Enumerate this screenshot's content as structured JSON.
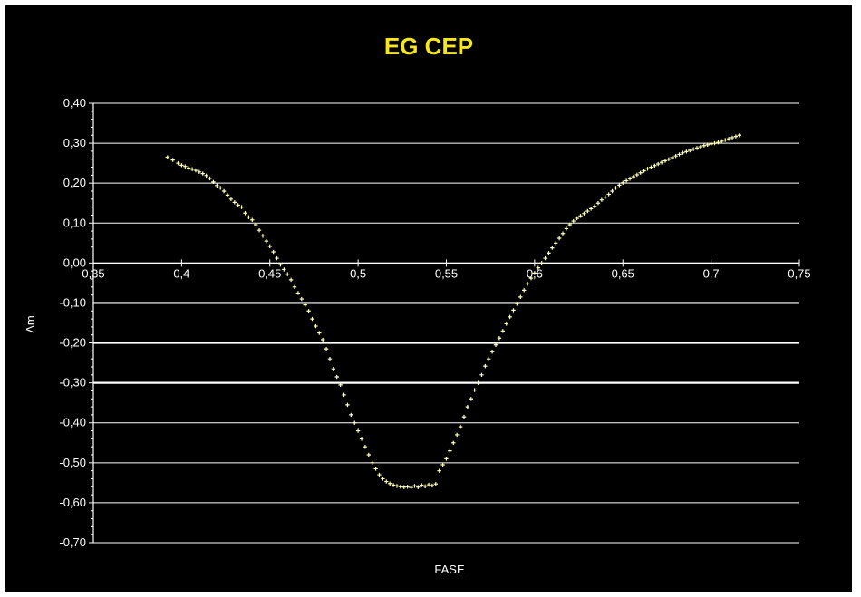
{
  "chart_data": {
    "type": "scatter",
    "title": "EG CEP",
    "xlabel": "FASE",
    "ylabel": "Δm",
    "xlim": [
      0.35,
      0.75
    ],
    "ylim": [
      -0.7,
      0.4
    ],
    "x_ticks": [
      "0,35",
      "0,4",
      "0,45",
      "0,5",
      "0,55",
      "0,6",
      "0,65",
      "0,7",
      "0,75"
    ],
    "x_tick_values": [
      0.35,
      0.4,
      0.45,
      0.5,
      0.55,
      0.6,
      0.65,
      0.7,
      0.75
    ],
    "y_ticks": [
      "0,40",
      "0,30",
      "0,20",
      "0,10",
      "0,00",
      "-0,10",
      "-0,20",
      "-0,30",
      "-0,40",
      "-0,50",
      "-0,60",
      "-0,70"
    ],
    "y_tick_values": [
      0.4,
      0.3,
      0.2,
      0.1,
      0.0,
      -0.1,
      -0.2,
      -0.3,
      -0.4,
      -0.5,
      -0.6,
      -0.7
    ],
    "grid": true,
    "legend": "none",
    "colors": {
      "background": "#000000",
      "title": "#f5e61e",
      "points": "#ffffc0",
      "grid": "#ffffff",
      "text": "#ffffff"
    },
    "series": [
      {
        "x": [
          0.392,
          0.395,
          0.398,
          0.4,
          0.402,
          0.404,
          0.406,
          0.408,
          0.41,
          0.412,
          0.414,
          0.416,
          0.418,
          0.42,
          0.422,
          0.424,
          0.426,
          0.428,
          0.43,
          0.432,
          0.434,
          0.436,
          0.438,
          0.44,
          0.442,
          0.444,
          0.446,
          0.448,
          0.45,
          0.452,
          0.454,
          0.456,
          0.458,
          0.46,
          0.462,
          0.464,
          0.466,
          0.468,
          0.47,
          0.472,
          0.474,
          0.476,
          0.478,
          0.48,
          0.482,
          0.484,
          0.486,
          0.488,
          0.49,
          0.492,
          0.494,
          0.496,
          0.498,
          0.5,
          0.502,
          0.504,
          0.506,
          0.508,
          0.51,
          0.512,
          0.514,
          0.516,
          0.518,
          0.52,
          0.522,
          0.524,
          0.526,
          0.528,
          0.53,
          0.532,
          0.534,
          0.536,
          0.538,
          0.54,
          0.542,
          0.544,
          0.546,
          0.548,
          0.55,
          0.552,
          0.554,
          0.556,
          0.558,
          0.56,
          0.562,
          0.564,
          0.566,
          0.568,
          0.57,
          0.572,
          0.574,
          0.576,
          0.578,
          0.58,
          0.582,
          0.584,
          0.586,
          0.588,
          0.59,
          0.592,
          0.594,
          0.596,
          0.598,
          0.6,
          0.602,
          0.604,
          0.606,
          0.608,
          0.61,
          0.612,
          0.614,
          0.616,
          0.618,
          0.62,
          0.622,
          0.624,
          0.626,
          0.628,
          0.63,
          0.632,
          0.634,
          0.636,
          0.638,
          0.64,
          0.642,
          0.644,
          0.646,
          0.648,
          0.65,
          0.652,
          0.654,
          0.656,
          0.658,
          0.66,
          0.662,
          0.664,
          0.666,
          0.668,
          0.67,
          0.672,
          0.674,
          0.676,
          0.678,
          0.68,
          0.682,
          0.684,
          0.686,
          0.688,
          0.69,
          0.692,
          0.694,
          0.696,
          0.698,
          0.7,
          0.702,
          0.704,
          0.706,
          0.708,
          0.71,
          0.712,
          0.714,
          0.716
        ],
        "y": [
          0.265,
          0.258,
          0.25,
          0.245,
          0.242,
          0.238,
          0.235,
          0.232,
          0.228,
          0.224,
          0.219,
          0.212,
          0.203,
          0.194,
          0.188,
          0.18,
          0.17,
          0.16,
          0.152,
          0.145,
          0.14,
          0.125,
          0.115,
          0.108,
          0.096,
          0.082,
          0.068,
          0.055,
          0.042,
          0.028,
          0.012,
          -0.004,
          -0.016,
          -0.028,
          -0.042,
          -0.06,
          -0.075,
          -0.09,
          -0.105,
          -0.12,
          -0.14,
          -0.158,
          -0.175,
          -0.192,
          -0.215,
          -0.24,
          -0.265,
          -0.285,
          -0.305,
          -0.33,
          -0.355,
          -0.38,
          -0.4,
          -0.42,
          -0.44,
          -0.46,
          -0.48,
          -0.5,
          -0.515,
          -0.53,
          -0.54,
          -0.547,
          -0.552,
          -0.556,
          -0.558,
          -0.56,
          -0.561,
          -0.56,
          -0.562,
          -0.558,
          -0.561,
          -0.556,
          -0.559,
          -0.555,
          -0.557,
          -0.553,
          -0.52,
          -0.505,
          -0.49,
          -0.47,
          -0.45,
          -0.43,
          -0.41,
          -0.385,
          -0.36,
          -0.34,
          -0.318,
          -0.3,
          -0.28,
          -0.258,
          -0.24,
          -0.222,
          -0.205,
          -0.188,
          -0.17,
          -0.152,
          -0.135,
          -0.118,
          -0.102,
          -0.085,
          -0.068,
          -0.052,
          -0.038,
          -0.025,
          -0.012,
          0.0,
          0.012,
          0.025,
          0.038,
          0.05,
          0.062,
          0.074,
          0.086,
          0.096,
          0.105,
          0.112,
          0.118,
          0.124,
          0.13,
          0.136,
          0.142,
          0.15,
          0.158,
          0.165,
          0.172,
          0.18,
          0.188,
          0.195,
          0.201,
          0.206,
          0.211,
          0.216,
          0.221,
          0.226,
          0.231,
          0.236,
          0.24,
          0.244,
          0.248,
          0.252,
          0.256,
          0.26,
          0.264,
          0.268,
          0.272,
          0.276,
          0.279,
          0.282,
          0.285,
          0.288,
          0.291,
          0.294,
          0.296,
          0.298,
          0.3,
          0.302,
          0.305,
          0.308,
          0.311,
          0.314,
          0.317,
          0.32
        ]
      }
    ]
  }
}
